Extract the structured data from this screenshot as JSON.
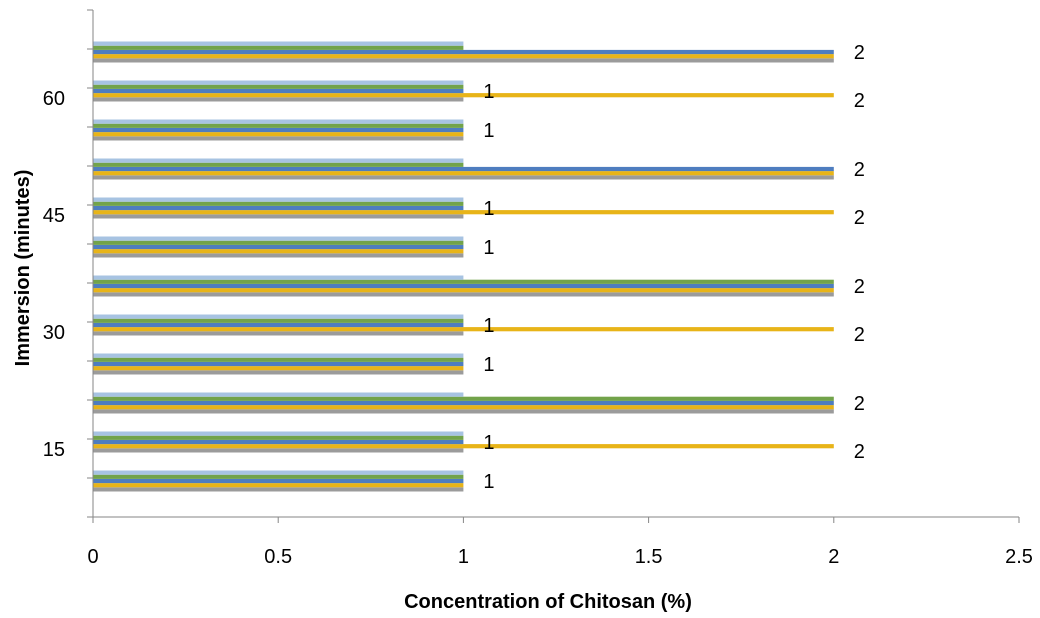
{
  "chart_data": {
    "type": "bar",
    "orientation": "horizontal",
    "xlabel": "Concentration of Chitosan (%)",
    "ylabel": "Immersion (minutes)",
    "xlim": [
      0,
      2.5
    ],
    "xticks": [
      "0",
      "0.5",
      "1",
      "1.5",
      "2",
      "2.5"
    ],
    "yticks": [
      "15",
      "30",
      "45",
      "60"
    ],
    "grid": false,
    "colors": [
      "#9b9b9b",
      "#e8b418",
      "#4e7dbf",
      "#72a34a",
      "#a7c3e2"
    ],
    "groups": [
      {
        "group": "15",
        "bar_values": [
          1,
          1,
          1,
          1,
          1
        ],
        "label": "1"
      },
      {
        "group": "15",
        "bar_values": [
          1,
          2,
          1,
          1,
          1
        ],
        "label": "1",
        "label2": "2"
      },
      {
        "group": "15",
        "bar_values": [
          2,
          2,
          2,
          2,
          1
        ],
        "label": "2"
      },
      {
        "group": "30",
        "bar_values": [
          1,
          1,
          1,
          1,
          1
        ],
        "label": "1"
      },
      {
        "group": "30",
        "bar_values": [
          1,
          2,
          1,
          1,
          1
        ],
        "label": "1",
        "label2": "2"
      },
      {
        "group": "30",
        "bar_values": [
          2,
          2,
          2,
          2,
          1
        ],
        "label": "2"
      },
      {
        "group": "45",
        "bar_values": [
          1,
          1,
          1,
          1,
          1
        ],
        "label": "1"
      },
      {
        "group": "45",
        "bar_values": [
          1,
          2,
          1,
          1,
          1
        ],
        "label": "1",
        "label2": "2"
      },
      {
        "group": "45",
        "bar_values": [
          2,
          2,
          2,
          1,
          1
        ],
        "label": "2"
      },
      {
        "group": "60",
        "bar_values": [
          1,
          1,
          1,
          1,
          1
        ],
        "label": "1"
      },
      {
        "group": "60",
        "bar_values": [
          1,
          2,
          1,
          1,
          1
        ],
        "label": "1",
        "label2": "2"
      },
      {
        "group": "60",
        "bar_values": [
          2,
          2,
          2,
          1,
          1
        ],
        "label": "2"
      }
    ]
  }
}
